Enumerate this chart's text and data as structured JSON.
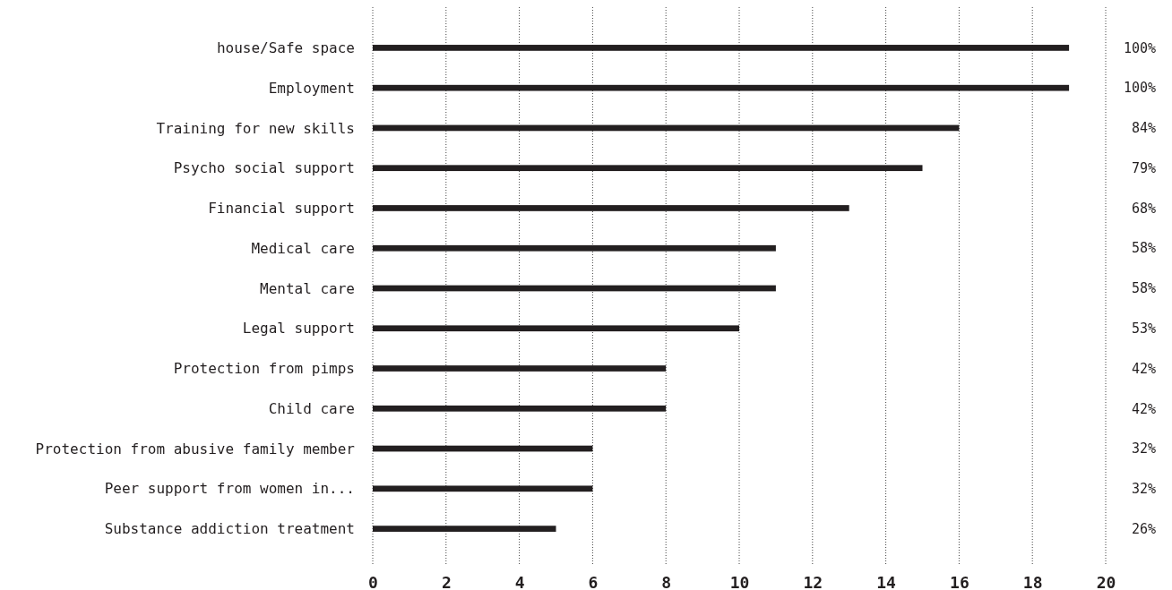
{
  "chart_data": {
    "type": "bar",
    "orientation": "horizontal",
    "categories": [
      "house/Safe space",
      "Employment",
      "Training for new skills",
      "Psycho social support",
      "Financial support",
      "Medical care",
      "Mental care",
      "Legal support",
      "Protection from pimps",
      "Child care",
      "Protection from abusive family member",
      "Peer support from women in...",
      "Substance addiction treatment"
    ],
    "values": [
      19,
      19,
      16,
      15,
      13,
      11,
      11,
      10,
      8,
      8,
      6,
      6,
      5
    ],
    "annotations": [
      "100%",
      "100%",
      "84%",
      "79%",
      "68%",
      "58%",
      "58%",
      "53%",
      "42%",
      "42%",
      "32%",
      "32%",
      "26%"
    ],
    "color": "#231f20",
    "xlim": [
      0,
      20
    ],
    "xticks": [
      0,
      2,
      4,
      6,
      8,
      10,
      12,
      14,
      16,
      18,
      20
    ],
    "grid": "x"
  }
}
